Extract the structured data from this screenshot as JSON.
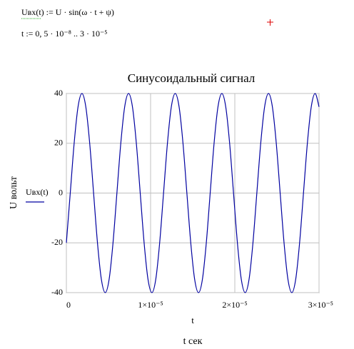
{
  "formulas": [
    "Uвх(t) := U · sin(ω · t + ψ)",
    "t := 0, 5 · 10⁻⁸ .. 3 · 10⁻⁵"
  ],
  "chart_data": {
    "type": "line",
    "title": "Синусоидальный сигнал",
    "x_variable": "t",
    "x_label": "t сек",
    "y_label": "U вольт",
    "x": [
      0,
      4.615e-07,
      9.231e-07,
      1.3846e-06,
      1.8462e-06,
      2.3077e-06,
      2.7692e-06,
      3.2308e-06,
      3.6923e-06,
      4.1538e-06,
      4.6154e-06,
      5.0769e-06,
      5.5385e-06,
      6e-06,
      6.4615e-06,
      6.9231e-06,
      7.3846e-06,
      7.8462e-06,
      8.3077e-06,
      8.7692e-06,
      9.2308e-06,
      9.6923e-06,
      1.01538e-05,
      1.06154e-05,
      1.10769e-05,
      1.15385e-05,
      1.2e-05,
      1.24615e-05,
      1.29231e-05,
      1.33846e-05,
      1.38462e-05,
      1.43077e-05,
      1.47692e-05,
      1.52308e-05,
      1.56923e-05,
      1.61538e-05,
      1.66154e-05,
      1.70769e-05,
      1.75385e-05,
      1.8e-05,
      1.84615e-05,
      1.89231e-05,
      1.93846e-05,
      1.98462e-05,
      2.03077e-05,
      2.07692e-05,
      2.12308e-05,
      2.16923e-05,
      2.21538e-05,
      2.26154e-05,
      2.30769e-05,
      2.35385e-05,
      2.4e-05,
      2.44615e-05,
      2.49231e-05,
      2.53846e-05,
      2.58462e-05,
      2.63077e-05,
      2.67692e-05,
      2.72308e-05,
      2.76923e-05,
      2.81538e-05,
      2.86154e-05,
      2.90769e-05,
      2.95385e-05,
      3e-05
    ],
    "series": [
      {
        "name": "Uвх(t)",
        "color": "#0000a0",
        "values": [
          -20,
          0,
          20,
          34.64,
          40,
          34.64,
          20,
          0,
          -20,
          -34.64,
          -40,
          -34.64,
          -20,
          0,
          20,
          34.64,
          40,
          34.64,
          20,
          0,
          -20,
          -34.64,
          -40,
          -34.64,
          -20,
          0,
          20,
          34.64,
          40,
          34.64,
          20,
          0,
          -20,
          -34.64,
          -40,
          -34.64,
          -20,
          0,
          20,
          34.64,
          40,
          34.64,
          20,
          0,
          -20,
          -34.64,
          -40,
          -34.64,
          -20,
          0,
          20,
          34.64,
          40,
          34.64,
          20,
          0,
          -20,
          -34.64,
          -40,
          -34.64,
          -20,
          0,
          20,
          34.64,
          40,
          34.64
        ]
      }
    ],
    "xlim": [
      0,
      3e-05
    ],
    "ylim": [
      -40,
      40
    ],
    "xticks": [
      0,
      {
        "value": 1e-05,
        "label": "1×10⁻⁵"
      },
      {
        "value": 2e-05,
        "label": "2×10⁻⁵"
      },
      {
        "value": 3e-05,
        "label": "3×10⁻⁵"
      }
    ],
    "yticks": [
      -40,
      -20,
      0,
      20,
      40
    ],
    "grid": true
  }
}
